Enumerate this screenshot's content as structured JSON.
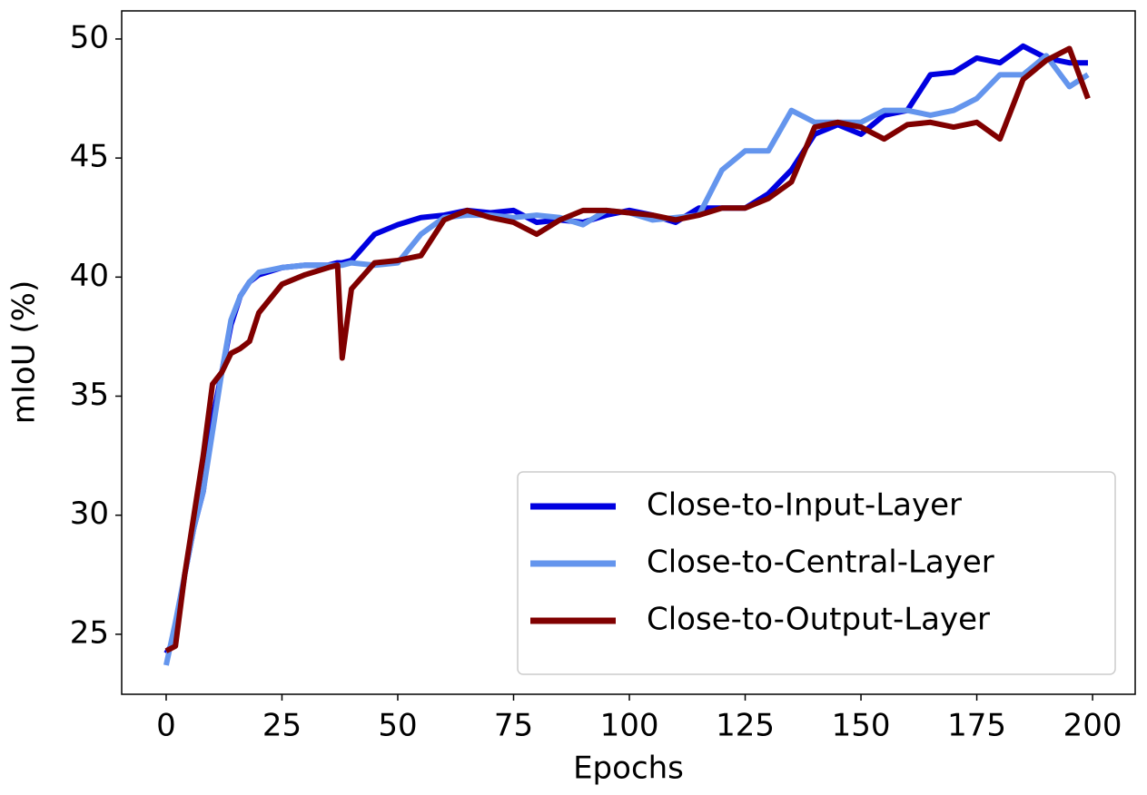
{
  "chart_data": {
    "type": "line",
    "x_label": "Epochs",
    "y_label": "mIoU (%)",
    "x": [
      0,
      2,
      4,
      6,
      8,
      10,
      12,
      14,
      16,
      18,
      20,
      25,
      30,
      35,
      37,
      38,
      40,
      45,
      50,
      55,
      60,
      65,
      70,
      75,
      80,
      85,
      90,
      95,
      100,
      105,
      110,
      115,
      120,
      125,
      130,
      135,
      140,
      145,
      150,
      155,
      160,
      165,
      170,
      175,
      180,
      185,
      190,
      195,
      199
    ],
    "series": [
      {
        "name": "Close-to-Input-Layer",
        "color": "#0000e0",
        "values": [
          24.2,
          24.8,
          27.5,
          29.5,
          31,
          34,
          36,
          38,
          39.2,
          39.8,
          40.1,
          40.4,
          40.5,
          40.5,
          40.6,
          40.6,
          40.7,
          41.8,
          42.2,
          42.5,
          42.6,
          42.8,
          42.7,
          42.8,
          42.3,
          42.4,
          42.3,
          42.6,
          42.8,
          42.6,
          42.3,
          42.9,
          42.9,
          42.9,
          43.5,
          44.5,
          46,
          46.4,
          46,
          46.8,
          47,
          48.5,
          48.6,
          49.2,
          49,
          49.7,
          49.2,
          49,
          49
        ]
      },
      {
        "name": "Close-to-Central-Layer",
        "color": "#6495ed",
        "values": [
          23.7,
          25.5,
          27.5,
          29.5,
          31,
          33.5,
          36,
          38.2,
          39.2,
          39.8,
          40.2,
          40.4,
          40.5,
          40.5,
          40.5,
          40.5,
          40.6,
          40.5,
          40.6,
          41.8,
          42.5,
          42.6,
          42.6,
          42.5,
          42.6,
          42.5,
          42.2,
          42.8,
          42.7,
          42.4,
          42.5,
          42.6,
          44.5,
          45.3,
          45.3,
          47,
          46.5,
          46.5,
          46.5,
          47,
          47,
          46.8,
          47,
          47.5,
          48.5,
          48.5,
          49.3,
          48,
          48.5
        ]
      },
      {
        "name": "Close-to-Output-Layer",
        "color": "#800000",
        "values": [
          24.3,
          24.5,
          27.5,
          30,
          32.5,
          35.5,
          36,
          36.8,
          37,
          37.3,
          38.5,
          39.7,
          40.1,
          40.4,
          40.5,
          36.6,
          39.5,
          40.6,
          40.7,
          40.9,
          42.4,
          42.8,
          42.5,
          42.3,
          41.8,
          42.4,
          42.8,
          42.8,
          42.7,
          42.6,
          42.4,
          42.6,
          42.9,
          42.9,
          43.3,
          44,
          46.3,
          46.5,
          46.3,
          45.8,
          46.4,
          46.5,
          46.3,
          46.5,
          45.8,
          48.3,
          49.1,
          49.6,
          47.5
        ]
      }
    ],
    "xlim": [
      -9.6,
      209.2
    ],
    "ylim": [
      22.48,
      51.18
    ],
    "xticks": [
      0,
      25,
      50,
      75,
      100,
      125,
      150,
      175,
      200
    ],
    "yticks": [
      25,
      30,
      35,
      40,
      45,
      50
    ],
    "legend": "lower right"
  }
}
